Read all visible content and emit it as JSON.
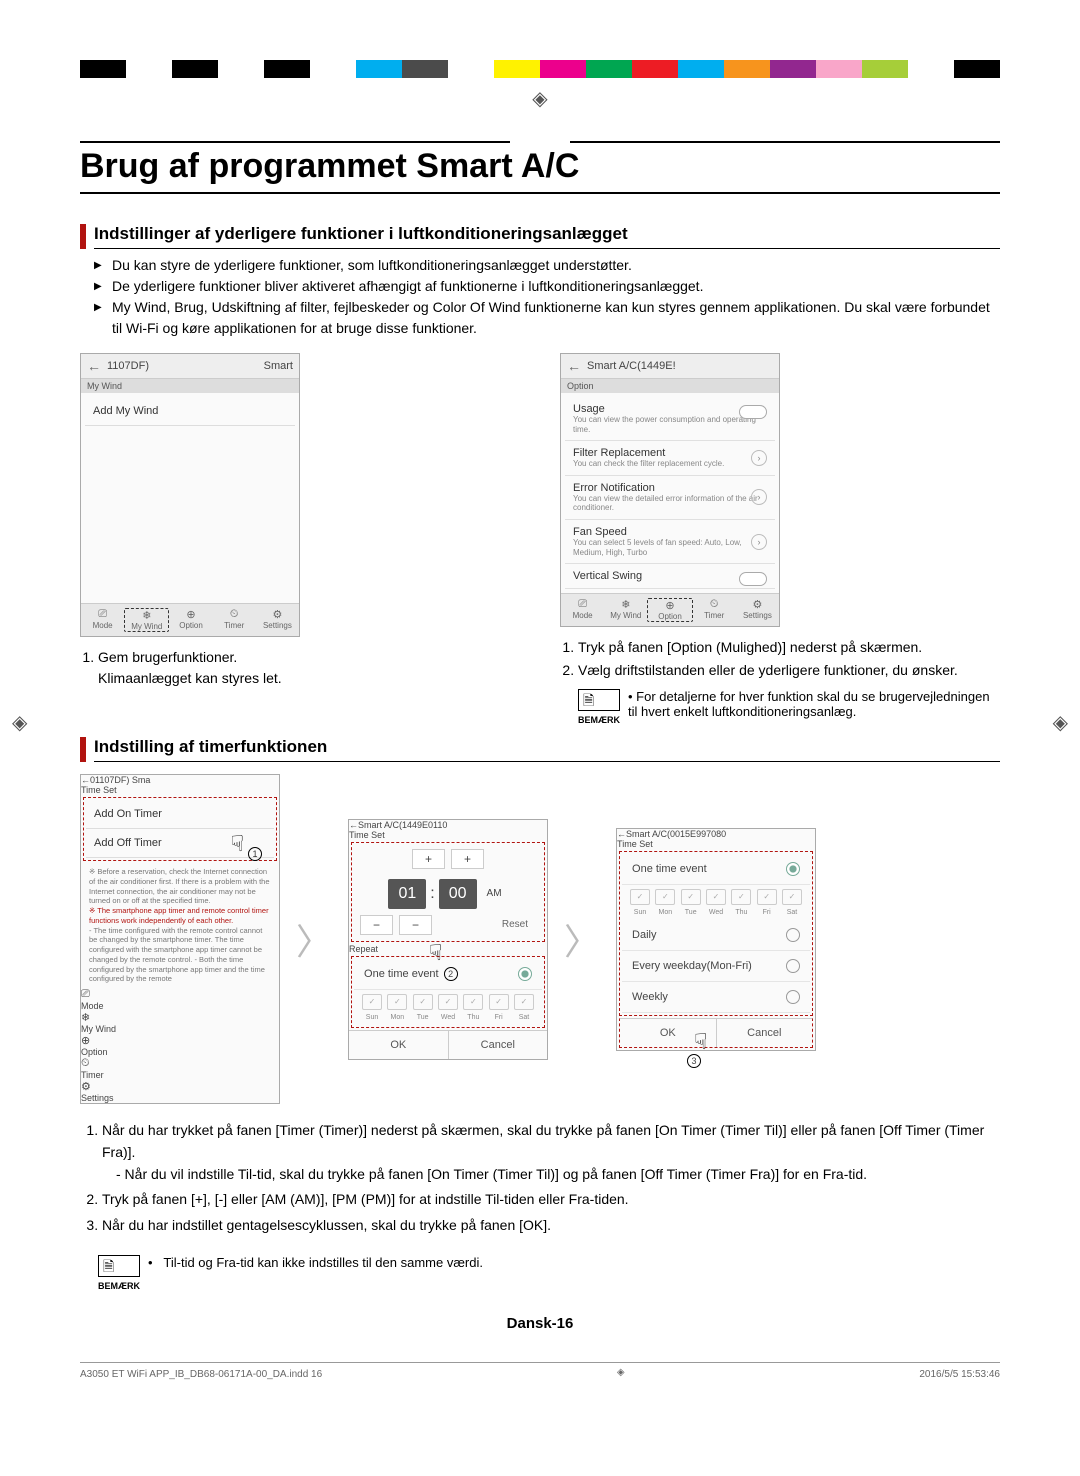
{
  "colorbar": [
    "#000000",
    "#ffffff",
    "#000000",
    "#ffffff",
    "#000000",
    "#ffffff",
    "#00aeef",
    "#4b4b4b",
    "#ffffff",
    "#fff200",
    "#ec008c",
    "#00a651",
    "#ed1c24",
    "#00aeef",
    "#f7941d",
    "#92278f",
    "#f9a6c9",
    "#a6ce39",
    "#ffffff",
    "#000000"
  ],
  "page_title": "Brug af programmet Smart A/C",
  "section1": {
    "heading": "Indstillinger af yderligere funktioner i luftkonditioneringsanlægget",
    "bullets": [
      "Du kan styre de yderligere funktioner, som luftkonditioneringsanlægget understøtter.",
      "De yderligere funktioner bliver aktiveret afhængigt af funktionerne i luftkonditioneringsanlægget.",
      "My Wind, Brug, Udskiftning af filter, fejlbeskeder og Color Of Wind funktionerne kan kun styres gennem applikationen. Du skal være forbundet til Wi-Fi og køre applikationen for at bruge disse funktioner."
    ]
  },
  "phoneA": {
    "title_left": "1107DF)",
    "title_right": "Smart",
    "subhead": "My Wind",
    "item": "Add My Wind",
    "tabs": [
      "Mode",
      "My Wind",
      "Option",
      "Timer",
      "Settings"
    ],
    "active_tab": 1
  },
  "phoneB": {
    "title": "Smart A/C(1449E!",
    "subhead": "Option",
    "items": [
      {
        "t": "Usage",
        "d": "You can view the power consumption and operating time.",
        "ctrl": "toggle"
      },
      {
        "t": "Filter Replacement",
        "d": "You can check the filter replacement cycle.",
        "ctrl": "chev"
      },
      {
        "t": "Error Notification",
        "d": "You can view the detailed error information of the air conditioner.",
        "ctrl": "chev"
      },
      {
        "t": "Fan Speed",
        "d": "You can select 5 levels of fan speed: Auto, Low, Medium, High, Turbo",
        "ctrl": "chev"
      },
      {
        "t": "Vertical Swing",
        "d": "",
        "ctrl": "toggle"
      }
    ],
    "tabs": [
      "Mode",
      "My Wind",
      "Option",
      "Timer",
      "Settings"
    ],
    "active_tab": 2
  },
  "stepsA": [
    "Gem brugerfunktioner.",
    "Klimaanlægget kan styres let."
  ],
  "stepsB": [
    "Tryk på fanen [Option (Mulighed)] nederst på skærmen.",
    "Vælg driftstilstanden eller de yderligere funktioner, du ønsker."
  ],
  "note1": {
    "label": "BEMÆRK",
    "text": "For detaljerne for hver funktion skal du se brugervejledningen til hvert enkelt luftkonditioneringsanlæg."
  },
  "section2_heading": "Indstilling af timerfunktionen",
  "timer1": {
    "title": "01107DF)         Sma",
    "subhead": "Time Set",
    "items": [
      "Add On Timer",
      "Add Off Timer"
    ],
    "note_pre": "※ Before a reservation, check the Internet connection of the air conditioner first. If there is a problem with the Internet connection, the air conditioner may not be turned on or off at the specified time.",
    "note_red": "※ The smartphone app timer and remote control timer functions work independently of each other.",
    "note_post": "- The time configured with the remote control cannot be changed by the smartphone timer. The time configured with the smartphone app timer cannot be changed by the remote control. - Both the time configured by the smartphone app timer and the time configured by the remote",
    "tabs": [
      "Mode",
      "My Wind",
      "Option",
      "Timer",
      "Settings"
    ],
    "active_tab": 3
  },
  "timer2": {
    "title": "Smart A/C(1449E0110",
    "subhead": "Time Set",
    "hour": "01",
    "minute": "00",
    "ampm": "AM",
    "reset": "Reset",
    "repeat_label": "Repeat",
    "event_label": "One time event",
    "days": [
      "Sun",
      "Mon",
      "Tue",
      "Wed",
      "Thu",
      "Fri",
      "Sat"
    ],
    "ok": "OK",
    "cancel": "Cancel"
  },
  "timer3": {
    "title": "Smart A/C(0015E997080",
    "subhead": "Time Set",
    "opts": [
      "One time event",
      "Daily",
      "Every weekday(Mon-Fri)",
      "Weekly"
    ],
    "days": [
      "Sun",
      "Mon",
      "Tue",
      "Wed",
      "Thu",
      "Fri",
      "Sat"
    ],
    "ok": "OK",
    "cancel": "Cancel"
  },
  "body_steps": [
    {
      "main": "Når du har trykket på fanen [Timer (Timer)] nederst på skærmen, skal du trykke på fanen [On Timer (Timer Til)] eller på fanen [Off Timer (Timer Fra)].",
      "sub": "Når du vil indstille Til-tid, skal du trykke på fanen [On Timer (Timer Til)] og på fanen [Off Timer (Timer Fra)] for en Fra-tid."
    },
    {
      "main": "Tryk på fanen [+], [-] eller [AM (AM)], [PM (PM)] for at indstille Til-tiden eller Fra-tiden."
    },
    {
      "main": "Når du har indstillet gentagelsescyklussen, skal du trykke på fanen [OK]."
    }
  ],
  "note2": {
    "label": "BEMÆRK",
    "text": "Til-tid og Fra-tid kan ikke indstilles til den samme værdi."
  },
  "footer": "Dansk-16",
  "meta_left": "A3050 ET WiFi APP_IB_DB68-06171A-00_DA.indd   16",
  "meta_right": "2016/5/5   15:53:46"
}
